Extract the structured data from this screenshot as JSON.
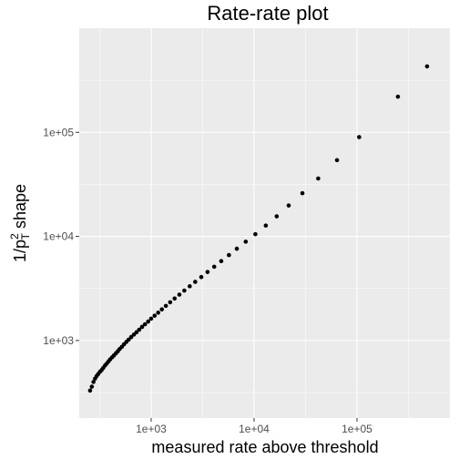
{
  "chart_data": {
    "type": "scatter",
    "title": "Rate-rate plot",
    "xlabel": "measured rate above threshold",
    "ylabel": {
      "prefix": "1/p",
      "superscript": "2",
      "subscript": "T",
      "suffix": " shape"
    },
    "x_scale": "log10",
    "y_scale": "log10",
    "xlim": [
      200,
      800000
    ],
    "ylim": [
      180,
      1000000
    ],
    "x_ticks": [
      {
        "value": 1000,
        "label": "1e+03"
      },
      {
        "value": 10000,
        "label": "1e+04"
      },
      {
        "value": 100000,
        "label": "1e+05"
      }
    ],
    "y_ticks": [
      {
        "value": 1000,
        "label": "1e+03"
      },
      {
        "value": 10000,
        "label": "1e+04"
      },
      {
        "value": 100000,
        "label": "1e+05"
      }
    ],
    "grid": true,
    "legend": "none",
    "point_color": "#000000",
    "panel_color": "#ebebeb",
    "points": [
      [
        255,
        330
      ],
      [
        265,
        360
      ],
      [
        275,
        400
      ],
      [
        285,
        430
      ],
      [
        295,
        455
      ],
      [
        305,
        475
      ],
      [
        318,
        500
      ],
      [
        330,
        520
      ],
      [
        342,
        545
      ],
      [
        356,
        575
      ],
      [
        370,
        600
      ],
      [
        385,
        630
      ],
      [
        400,
        660
      ],
      [
        418,
        690
      ],
      [
        435,
        720
      ],
      [
        455,
        755
      ],
      [
        475,
        790
      ],
      [
        495,
        830
      ],
      [
        520,
        870
      ],
      [
        545,
        920
      ],
      [
        575,
        970
      ],
      [
        605,
        1020
      ],
      [
        640,
        1080
      ],
      [
        680,
        1140
      ],
      [
        720,
        1200
      ],
      [
        765,
        1270
      ],
      [
        815,
        1350
      ],
      [
        870,
        1430
      ],
      [
        935,
        1520
      ],
      [
        1000,
        1620
      ],
      [
        1080,
        1730
      ],
      [
        1170,
        1850
      ],
      [
        1270,
        1990
      ],
      [
        1390,
        2150
      ],
      [
        1530,
        2330
      ],
      [
        1690,
        2530
      ],
      [
        1880,
        2760
      ],
      [
        2100,
        3020
      ],
      [
        2370,
        3320
      ],
      [
        2680,
        3660
      ],
      [
        3070,
        4070
      ],
      [
        3530,
        4550
      ],
      [
        4100,
        5110
      ],
      [
        4800,
        5790
      ],
      [
        5700,
        6620
      ],
      [
        6800,
        7620
      ],
      [
        8300,
        8900
      ],
      [
        10300,
        10500
      ],
      [
        13000,
        12700
      ],
      [
        16600,
        15600
      ],
      [
        21700,
        19800
      ],
      [
        29500,
        26000
      ],
      [
        42000,
        36000
      ],
      [
        64000,
        54000
      ],
      [
        105000,
        90000
      ],
      [
        250000,
        220000
      ],
      [
        480000,
        430000
      ]
    ]
  }
}
